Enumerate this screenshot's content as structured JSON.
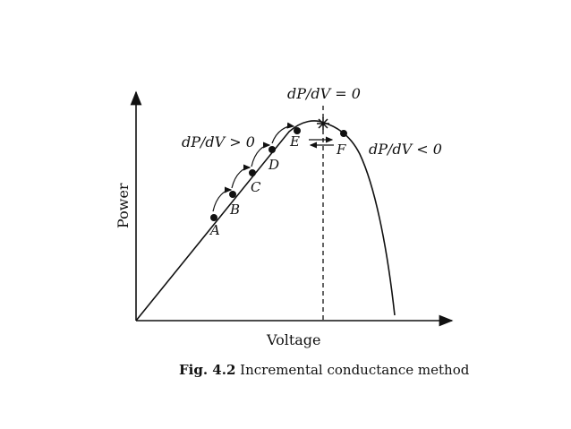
{
  "figure": {
    "axes": {
      "ylabel": "Power",
      "xlabel": "Voltage"
    },
    "annotations": {
      "mpp": "dP/dV = 0",
      "left_slope": "dP/dV > 0",
      "right_slope": "dP/dV < 0"
    },
    "points": [
      {
        "label": "A"
      },
      {
        "label": "B"
      },
      {
        "label": "C"
      },
      {
        "label": "D"
      },
      {
        "label": "E"
      },
      {
        "label": "F"
      }
    ],
    "caption": {
      "number": "Fig. 4.2",
      "text": " Incremental conductance method"
    }
  }
}
